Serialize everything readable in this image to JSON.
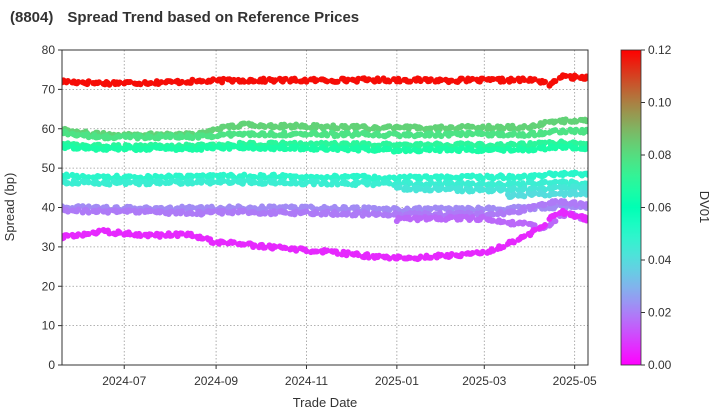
{
  "header": {
    "code": "(8804)",
    "title": "Spread Trend based on Reference Prices"
  },
  "chart_data": {
    "type": "scatter",
    "title": "Spread Trend based on Reference Prices",
    "xlabel": "Trade Date",
    "ylabel": "Spread (bp)",
    "colorbar_label": "DV01",
    "x_range": [
      "2024-05-20",
      "2025-05-10"
    ],
    "ylim": [
      0,
      80
    ],
    "y_ticks": [
      0,
      10,
      20,
      30,
      40,
      50,
      60,
      70,
      80
    ],
    "x_ticks": [
      {
        "date": "2024-07-01",
        "label": "2024-07"
      },
      {
        "date": "2024-09-01",
        "label": "2024-09"
      },
      {
        "date": "2024-11-01",
        "label": "2024-11"
      },
      {
        "date": "2025-01-01",
        "label": "2025-01"
      },
      {
        "date": "2025-03-01",
        "label": "2025-03"
      },
      {
        "date": "2025-05-01",
        "label": "2025-05"
      }
    ],
    "colorbar_range": [
      0.0,
      0.12
    ],
    "colorbar_ticks": [
      "0.00",
      "0.02",
      "0.04",
      "0.06",
      "0.08",
      "0.10",
      "0.12"
    ],
    "colormap": "rainbow",
    "grid": true,
    "marker_size": 3,
    "series": [
      {
        "dv01": 0.118,
        "points": [
          [
            "2024-05-20",
            72
          ],
          [
            "2024-06-15",
            71.6
          ],
          [
            "2024-07-15",
            71.7
          ],
          [
            "2024-08-15",
            72
          ],
          [
            "2024-09-15",
            72.3
          ],
          [
            "2024-10-15",
            72.3
          ],
          [
            "2024-11-15",
            72.3
          ],
          [
            "2024-12-15",
            72.4
          ],
          [
            "2025-01-01",
            72.4
          ],
          [
            "2025-02-01",
            72.3
          ],
          [
            "2025-03-01",
            72.3
          ],
          [
            "2025-04-01",
            72.4
          ],
          [
            "2025-04-10",
            72
          ],
          [
            "2025-04-15",
            71
          ],
          [
            "2025-04-20",
            73.2
          ],
          [
            "2025-05-10",
            73
          ]
        ]
      },
      {
        "dv01": 0.083,
        "points": [
          [
            "2024-05-20",
            60
          ],
          [
            "2024-06-01",
            59
          ],
          [
            "2024-06-15",
            58.5
          ],
          [
            "2024-07-15",
            58.5
          ],
          [
            "2024-08-20",
            58.7
          ],
          [
            "2024-09-01",
            60
          ],
          [
            "2024-09-20",
            61
          ],
          [
            "2024-10-15",
            60.7
          ],
          [
            "2024-11-15",
            60.5
          ],
          [
            "2024-12-15",
            60.2
          ],
          [
            "2025-01-01",
            60.2
          ],
          [
            "2025-02-01",
            60.3
          ],
          [
            "2025-03-01",
            60.3
          ],
          [
            "2025-04-01",
            60.5
          ],
          [
            "2025-04-20",
            62
          ],
          [
            "2025-05-10",
            62
          ]
        ]
      },
      {
        "dv01": 0.078,
        "points": [
          [
            "2024-05-20",
            59
          ],
          [
            "2024-06-15",
            57.8
          ],
          [
            "2024-07-15",
            58
          ],
          [
            "2024-08-15",
            58
          ],
          [
            "2024-09-15",
            58.6
          ],
          [
            "2024-10-15",
            58.7
          ],
          [
            "2024-11-15",
            58.6
          ],
          [
            "2024-12-15",
            58.5
          ],
          [
            "2025-01-01",
            58.4
          ],
          [
            "2025-02-01",
            58.5
          ],
          [
            "2025-03-01",
            58.6
          ],
          [
            "2025-04-01",
            58.6
          ],
          [
            "2025-04-20",
            59.5
          ],
          [
            "2025-05-10",
            59.3
          ]
        ]
      },
      {
        "dv01": 0.07,
        "points": [
          [
            "2024-05-20",
            56
          ],
          [
            "2024-06-15",
            55.5
          ],
          [
            "2024-07-15",
            55.5
          ],
          [
            "2024-08-15",
            55.6
          ],
          [
            "2024-09-15",
            56
          ],
          [
            "2024-10-15",
            56.1
          ],
          [
            "2024-11-15",
            56
          ],
          [
            "2024-12-15",
            55.9
          ],
          [
            "2025-01-01",
            55.8
          ],
          [
            "2025-02-01",
            55.9
          ],
          [
            "2025-03-01",
            55.8
          ],
          [
            "2025-04-01",
            56
          ],
          [
            "2025-04-20",
            56.5
          ],
          [
            "2025-05-10",
            56
          ]
        ]
      },
      {
        "dv01": 0.066,
        "points": [
          [
            "2024-05-20",
            55.3
          ],
          [
            "2024-06-15",
            55
          ],
          [
            "2024-07-15",
            55
          ],
          [
            "2024-08-15",
            55
          ],
          [
            "2024-09-15",
            55.3
          ],
          [
            "2024-10-15",
            55.2
          ],
          [
            "2024-11-15",
            55
          ],
          [
            "2024-12-15",
            54.8
          ],
          [
            "2025-01-01",
            54.6
          ],
          [
            "2025-02-01",
            54.8
          ],
          [
            "2025-03-01",
            54.7
          ],
          [
            "2025-04-01",
            54.8
          ],
          [
            "2025-04-20",
            55.3
          ],
          [
            "2025-05-10",
            55.2
          ]
        ]
      },
      {
        "dv01": 0.05,
        "points": [
          [
            "2024-05-20",
            48
          ],
          [
            "2024-06-15",
            47.6
          ],
          [
            "2024-07-15",
            47.7
          ],
          [
            "2024-08-15",
            47.8
          ],
          [
            "2024-09-15",
            47.9
          ],
          [
            "2024-10-15",
            47.9
          ],
          [
            "2024-11-15",
            47.7
          ],
          [
            "2024-12-15",
            47.6
          ],
          [
            "2025-01-01",
            47.5
          ],
          [
            "2025-02-01",
            47.6
          ],
          [
            "2025-03-01",
            47.7
          ],
          [
            "2025-04-01",
            47.9
          ],
          [
            "2025-04-20",
            48.6
          ],
          [
            "2025-05-10",
            48.3
          ]
        ]
      },
      {
        "dv01": 0.046,
        "points": [
          [
            "2024-05-20",
            46.5
          ],
          [
            "2024-06-15",
            46.2
          ],
          [
            "2024-07-15",
            46.3
          ],
          [
            "2024-08-15",
            46.4
          ],
          [
            "2024-09-15",
            46.5
          ],
          [
            "2024-10-15",
            46.4
          ],
          [
            "2024-11-15",
            46.2
          ],
          [
            "2024-12-15",
            46.1
          ],
          [
            "2025-01-01",
            46
          ],
          [
            "2025-02-01",
            46
          ],
          [
            "2025-03-01",
            45.8
          ],
          [
            "2025-04-01",
            46
          ],
          [
            "2025-04-20",
            46.3
          ],
          [
            "2025-05-10",
            46.1
          ]
        ]
      },
      {
        "dv01": 0.043,
        "points": [
          [
            "2025-01-01",
            44.8
          ],
          [
            "2025-02-01",
            44.6
          ],
          [
            "2025-03-01",
            44.4
          ],
          [
            "2025-04-01",
            44.6
          ],
          [
            "2025-04-20",
            45
          ],
          [
            "2025-05-10",
            44.9
          ]
        ]
      },
      {
        "dv01": 0.04,
        "points": [
          [
            "2025-03-15",
            43
          ],
          [
            "2025-04-01",
            43.3
          ],
          [
            "2025-04-20",
            43.6
          ],
          [
            "2025-05-10",
            43.5
          ]
        ]
      },
      {
        "dv01": 0.022,
        "points": [
          [
            "2024-05-20",
            40
          ],
          [
            "2024-06-15",
            39.8
          ],
          [
            "2024-07-15",
            39.7
          ],
          [
            "2024-08-15",
            39.8
          ],
          [
            "2024-09-15",
            39.9
          ],
          [
            "2024-10-15",
            39.9
          ],
          [
            "2024-11-15",
            39.8
          ],
          [
            "2024-12-15",
            39.6
          ],
          [
            "2025-01-01",
            39.5
          ],
          [
            "2025-02-01",
            39.6
          ],
          [
            "2025-03-01",
            39.6
          ],
          [
            "2025-04-01",
            39.9
          ],
          [
            "2025-04-20",
            40.3
          ],
          [
            "2025-05-10",
            40.1
          ]
        ]
      },
      {
        "dv01": 0.019,
        "points": [
          [
            "2024-05-20",
            39.3
          ],
          [
            "2024-06-15",
            39
          ],
          [
            "2024-07-15",
            38.9
          ],
          [
            "2024-08-15",
            38.6
          ],
          [
            "2024-09-15",
            38.8
          ],
          [
            "2024-10-15",
            38.7
          ],
          [
            "2024-11-15",
            38.5
          ],
          [
            "2024-12-15",
            38.3
          ],
          [
            "2025-01-01",
            38.2
          ],
          [
            "2025-02-01",
            38.3
          ],
          [
            "2025-03-01",
            38.4
          ],
          [
            "2025-03-20",
            38.7
          ],
          [
            "2025-04-01",
            40
          ],
          [
            "2025-04-20",
            41.5
          ],
          [
            "2025-05-10",
            40.5
          ]
        ]
      },
      {
        "dv01": 0.016,
        "points": [
          [
            "2025-01-01",
            37
          ],
          [
            "2025-02-01",
            37.3
          ],
          [
            "2025-03-01",
            37.2
          ],
          [
            "2025-03-20",
            36
          ],
          [
            "2025-04-01",
            35.6
          ],
          [
            "2025-04-10",
            34.5
          ],
          [
            "2025-04-25",
            38.5
          ],
          [
            "2025-05-10",
            37
          ]
        ]
      },
      {
        "dv01": 0.006,
        "points": [
          [
            "2024-05-20",
            32.5
          ],
          [
            "2024-06-01",
            33
          ],
          [
            "2024-06-15",
            34
          ],
          [
            "2024-07-01",
            33.4
          ],
          [
            "2024-07-15",
            32.8
          ],
          [
            "2024-08-01",
            33.1
          ],
          [
            "2024-08-15",
            33
          ],
          [
            "2024-09-01",
            31.2
          ],
          [
            "2024-09-15",
            30.8
          ],
          [
            "2024-10-01",
            30.2
          ],
          [
            "2024-10-15",
            29.7
          ],
          [
            "2024-11-01",
            29.2
          ],
          [
            "2024-11-15",
            28.7
          ],
          [
            "2024-12-01",
            28.2
          ],
          [
            "2024-12-15",
            27.6
          ],
          [
            "2025-01-01",
            27.3
          ],
          [
            "2025-01-15",
            27.2
          ],
          [
            "2025-02-01",
            27.8
          ],
          [
            "2025-02-15",
            28
          ],
          [
            "2025-03-01",
            28.6
          ],
          [
            "2025-03-15",
            30.5
          ],
          [
            "2025-04-01",
            33.3
          ],
          [
            "2025-04-10",
            35.5
          ],
          [
            "2025-04-20",
            39
          ],
          [
            "2025-05-10",
            37
          ]
        ]
      }
    ]
  }
}
